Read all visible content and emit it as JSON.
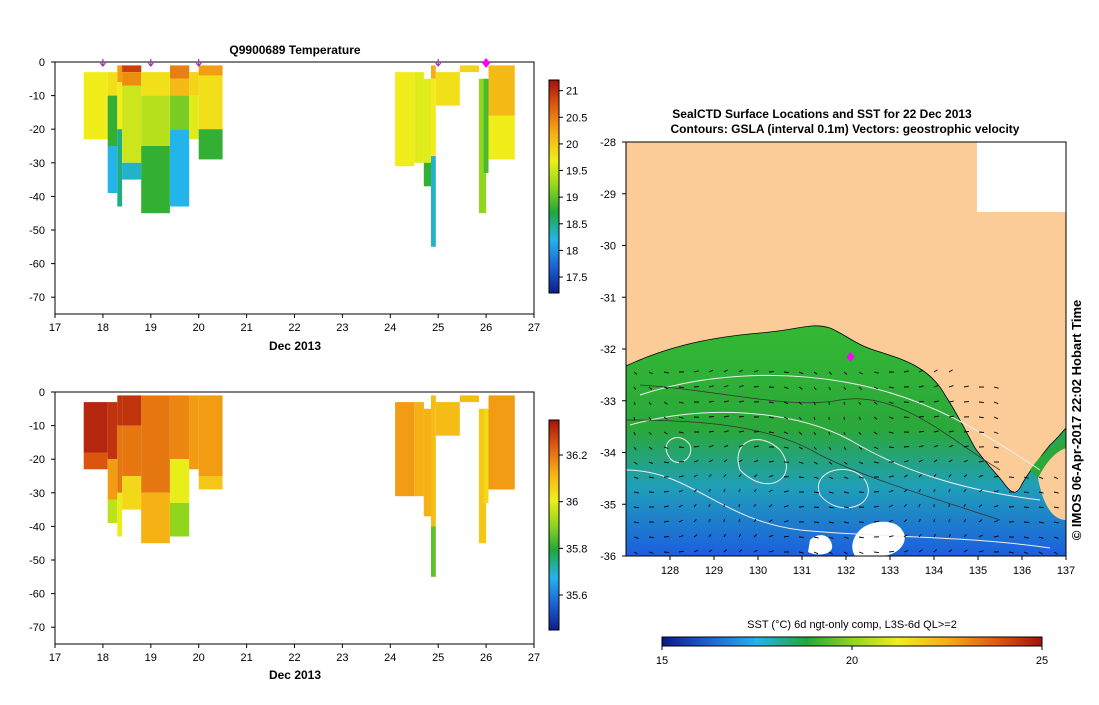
{
  "chart_data": [
    {
      "type": "heatmap",
      "title": "Q9900689  Temperature",
      "xlabel": "Dec 2013",
      "ylabel": "",
      "xlim": [
        17,
        27
      ],
      "ylim": [
        -75,
        0
      ],
      "x_ticks": [
        "17",
        "18",
        "19",
        "20",
        "21",
        "22",
        "23",
        "24",
        "25",
        "26",
        "27"
      ],
      "y_ticks": [
        "0",
        "-10",
        "-20",
        "-30",
        "-40",
        "-50",
        "-60",
        "-70"
      ],
      "colorbar": {
        "min": 17.2,
        "max": 21.2,
        "ticks": [
          "17.5",
          "18",
          "18.5",
          "19",
          "19.5",
          "20",
          "20.5",
          "21"
        ]
      },
      "profile_markers": [
        18.0,
        19.0,
        20.0,
        25.0,
        26.0
      ],
      "profiles": [
        {
          "x0": 17.6,
          "x1": 18.1,
          "cells": [
            [
              3,
              23,
              19.7
            ]
          ]
        },
        {
          "x0": 18.1,
          "x1": 18.3,
          "cells": [
            [
              3,
              10,
              19.8
            ],
            [
              10,
              25,
              18.8
            ],
            [
              25,
              39,
              18.2
            ]
          ]
        },
        {
          "x0": 18.3,
          "x1": 18.4,
          "cells": [
            [
              1,
              6,
              20.3
            ],
            [
              6,
              20,
              19.7
            ],
            [
              20,
              43,
              18.5
            ]
          ]
        },
        {
          "x0": 18.4,
          "x1": 18.8,
          "cells": [
            [
              1,
              3,
              20.9
            ],
            [
              3,
              7,
              20.4
            ],
            [
              7,
              30,
              19.5
            ],
            [
              30,
              35,
              18.3
            ]
          ]
        },
        {
          "x0": 18.8,
          "x1": 19.4,
          "cells": [
            [
              3,
              10,
              19.8
            ],
            [
              10,
              25,
              19.4
            ],
            [
              25,
              45,
              18.8
            ]
          ]
        },
        {
          "x0": 19.4,
          "x1": 19.8,
          "cells": [
            [
              1,
              5,
              20.5
            ],
            [
              5,
              10,
              20.1
            ],
            [
              10,
              20,
              19.1
            ],
            [
              20,
              43,
              18.2
            ]
          ]
        },
        {
          "x0": 19.8,
          "x1": 20.0,
          "cells": [
            [
              3,
              10,
              19.9
            ],
            [
              10,
              23,
              19.6
            ]
          ]
        },
        {
          "x0": 20.0,
          "x1": 20.5,
          "cells": [
            [
              1,
              4,
              20.3
            ],
            [
              4,
              20,
              19.8
            ],
            [
              20,
              29,
              18.8
            ]
          ]
        },
        {
          "x0": 24.1,
          "x1": 24.5,
          "cells": [
            [
              3,
              31,
              19.7
            ]
          ]
        },
        {
          "x0": 24.5,
          "x1": 24.7,
          "cells": [
            [
              3,
              30,
              19.6
            ]
          ]
        },
        {
          "x0": 24.7,
          "x1": 24.85,
          "cells": [
            [
              5,
              30,
              19.6
            ],
            [
              30,
              37,
              18.8
            ]
          ]
        },
        {
          "x0": 24.85,
          "x1": 24.95,
          "cells": [
            [
              1,
              5,
              20.2
            ],
            [
              5,
              28,
              19.7
            ],
            [
              28,
              55,
              18.3
            ]
          ]
        },
        {
          "x0": 24.95,
          "x1": 25.45,
          "cells": [
            [
              3,
              13,
              19.8
            ]
          ]
        },
        {
          "x0": 25.45,
          "x1": 25.85,
          "cells": [
            [
              1,
              3,
              19.9
            ]
          ]
        },
        {
          "x0": 25.85,
          "x1": 26.0,
          "cells": [
            [
              5,
              45,
              19.2
            ]
          ]
        },
        {
          "x0": 25.95,
          "x1": 26.05,
          "cells": [
            [
              5,
              33,
              18.9
            ]
          ]
        },
        {
          "x0": 26.05,
          "x1": 26.6,
          "cells": [
            [
              1,
              16,
              20.1
            ],
            [
              16,
              29,
              19.7
            ]
          ]
        }
      ]
    },
    {
      "type": "heatmap",
      "title": "",
      "xlabel": "Dec 2013",
      "ylabel": "",
      "xlim": [
        17,
        27
      ],
      "ylim": [
        -75,
        0
      ],
      "x_ticks": [
        "17",
        "18",
        "19",
        "20",
        "21",
        "22",
        "23",
        "24",
        "25",
        "26",
        "27"
      ],
      "y_ticks": [
        "0",
        "-10",
        "-20",
        "-30",
        "-40",
        "-50",
        "-60",
        "-70"
      ],
      "colorbar": {
        "min": 35.45,
        "max": 36.35,
        "ticks": [
          "35.6",
          "35.8",
          "36",
          "36.2"
        ]
      },
      "profiles": [
        {
          "x0": 17.6,
          "x1": 18.1,
          "cells": [
            [
              3,
              18,
              36.32
            ],
            [
              18,
              23,
              36.25
            ]
          ]
        },
        {
          "x0": 18.1,
          "x1": 18.3,
          "cells": [
            [
              3,
              20,
              36.3
            ],
            [
              20,
              32,
              36.15
            ],
            [
              32,
              39,
              35.95
            ]
          ]
        },
        {
          "x0": 18.3,
          "x1": 18.4,
          "cells": [
            [
              1,
              10,
              36.3
            ],
            [
              10,
              30,
              36.2
            ],
            [
              30,
              43,
              36.0
            ]
          ]
        },
        {
          "x0": 18.4,
          "x1": 18.8,
          "cells": [
            [
              1,
              10,
              36.3
            ],
            [
              10,
              25,
              36.2
            ],
            [
              25,
              35,
              36.05
            ]
          ]
        },
        {
          "x0": 18.8,
          "x1": 19.4,
          "cells": [
            [
              1,
              30,
              36.2
            ],
            [
              30,
              45,
              36.12
            ]
          ]
        },
        {
          "x0": 19.4,
          "x1": 19.8,
          "cells": [
            [
              1,
              20,
              36.18
            ],
            [
              20,
              33,
              36.0
            ],
            [
              33,
              43,
              35.9
            ]
          ]
        },
        {
          "x0": 19.8,
          "x1": 20.0,
          "cells": [
            [
              1,
              23,
              36.15
            ]
          ]
        },
        {
          "x0": 20.0,
          "x1": 20.5,
          "cells": [
            [
              1,
              25,
              36.15
            ],
            [
              25,
              29,
              36.08
            ]
          ]
        },
        {
          "x0": 24.1,
          "x1": 24.5,
          "cells": [
            [
              3,
              31,
              36.15
            ]
          ]
        },
        {
          "x0": 24.5,
          "x1": 24.7,
          "cells": [
            [
              3,
              31,
              36.12
            ]
          ]
        },
        {
          "x0": 24.7,
          "x1": 24.85,
          "cells": [
            [
              5,
              37,
              36.12
            ]
          ]
        },
        {
          "x0": 24.85,
          "x1": 24.95,
          "cells": [
            [
              1,
              40,
              36.1
            ],
            [
              40,
              55,
              35.85
            ]
          ]
        },
        {
          "x0": 24.95,
          "x1": 25.45,
          "cells": [
            [
              3,
              13,
              36.1
            ]
          ]
        },
        {
          "x0": 25.45,
          "x1": 25.85,
          "cells": [
            [
              1,
              3,
              36.1
            ]
          ]
        },
        {
          "x0": 25.85,
          "x1": 26.0,
          "cells": [
            [
              5,
              45,
              36.08
            ]
          ]
        },
        {
          "x0": 25.95,
          "x1": 26.05,
          "cells": [
            [
              5,
              33,
              36.05
            ]
          ]
        },
        {
          "x0": 26.05,
          "x1": 26.6,
          "cells": [
            [
              1,
              29,
              36.15
            ]
          ]
        }
      ]
    },
    {
      "type": "map",
      "title": "SealCTD Surface Locations and SST for 22 Dec 2013",
      "subtitle": "Contours: GSLA (interval 0.1m) Vectors: geostrophic velocity",
      "xlim": [
        127,
        137
      ],
      "ylim": [
        -36,
        -28
      ],
      "x_ticks": [
        "128",
        "129",
        "130",
        "131",
        "132",
        "133",
        "134",
        "135",
        "136",
        "137"
      ],
      "y_ticks": [
        "-28",
        "-29",
        "-30",
        "-31",
        "-32",
        "-33",
        "-34",
        "-35",
        "-36"
      ],
      "seal_location": {
        "lon": 132.1,
        "lat": -32.15
      },
      "colorbar": {
        "label": "SST (°C) 6d ngt-only comp, L3S-6d QL>=2",
        "min": 15,
        "max": 25,
        "ticks": [
          "15",
          "20",
          "25"
        ]
      }
    }
  ],
  "side_caption": "© IMOS 06-Apr-2017 22:02 Hobart Time"
}
